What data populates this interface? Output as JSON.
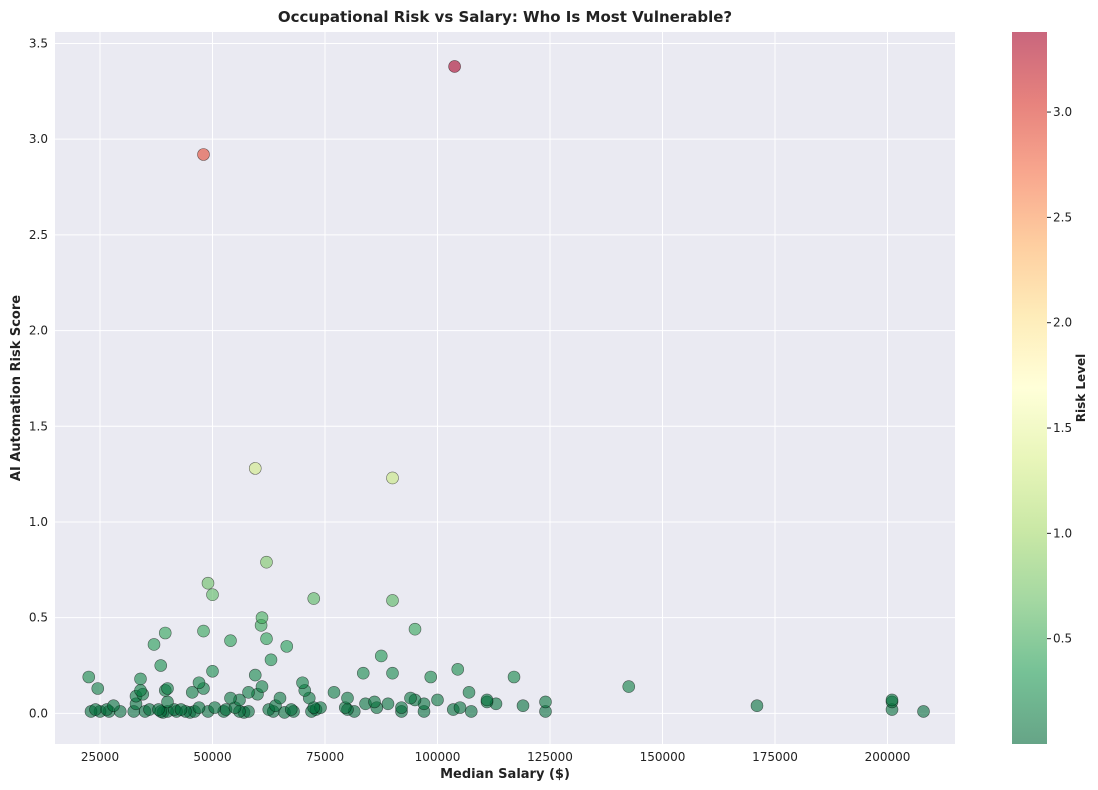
{
  "chart_data": {
    "type": "scatter",
    "title": "Occupational Risk vs Salary: Who Is Most Vulnerable?",
    "xlabel": "Median Salary ($)",
    "ylabel": "AI Automation Risk Score",
    "xlim": [
      15000,
      215000
    ],
    "ylim": [
      -0.16,
      3.56
    ],
    "x_ticks": [
      25000,
      50000,
      75000,
      100000,
      125000,
      150000,
      175000,
      200000
    ],
    "x_tick_labels": [
      "25000",
      "50000",
      "75000",
      "100000",
      "125000",
      "150000",
      "175000",
      "200000"
    ],
    "y_ticks": [
      0.0,
      0.5,
      1.0,
      1.5,
      2.0,
      2.5,
      3.0,
      3.5
    ],
    "y_tick_labels": [
      "0.0",
      "0.5",
      "1.0",
      "1.5",
      "2.0",
      "2.5",
      "3.0",
      "3.5"
    ],
    "grid": true,
    "colorbar": {
      "label": "Risk Level",
      "colormap": "RdYlGn_r",
      "range": [
        0.0,
        3.38
      ],
      "ticks": [
        0.5,
        1.0,
        1.5,
        2.0,
        2.5,
        3.0
      ],
      "tick_labels": [
        "0.5",
        "1.0",
        "1.5",
        "2.0",
        "2.5",
        "3.0"
      ]
    },
    "points": [
      {
        "x": 103800,
        "y": 3.38
      },
      {
        "x": 48000,
        "y": 2.92
      },
      {
        "x": 59500,
        "y": 1.28
      },
      {
        "x": 90000,
        "y": 1.23
      },
      {
        "x": 62000,
        "y": 0.79
      },
      {
        "x": 49000,
        "y": 0.68
      },
      {
        "x": 50000,
        "y": 0.62
      },
      {
        "x": 72500,
        "y": 0.6
      },
      {
        "x": 90000,
        "y": 0.59
      },
      {
        "x": 61000,
        "y": 0.5
      },
      {
        "x": 60800,
        "y": 0.46
      },
      {
        "x": 95000,
        "y": 0.44
      },
      {
        "x": 48000,
        "y": 0.43
      },
      {
        "x": 39500,
        "y": 0.42
      },
      {
        "x": 54000,
        "y": 0.38
      },
      {
        "x": 62000,
        "y": 0.39
      },
      {
        "x": 37000,
        "y": 0.36
      },
      {
        "x": 66500,
        "y": 0.35
      },
      {
        "x": 87500,
        "y": 0.3
      },
      {
        "x": 63000,
        "y": 0.28
      },
      {
        "x": 38500,
        "y": 0.25
      },
      {
        "x": 104500,
        "y": 0.23
      },
      {
        "x": 50000,
        "y": 0.22
      },
      {
        "x": 83500,
        "y": 0.21
      },
      {
        "x": 90000,
        "y": 0.21
      },
      {
        "x": 59500,
        "y": 0.2
      },
      {
        "x": 22500,
        "y": 0.19
      },
      {
        "x": 117000,
        "y": 0.19
      },
      {
        "x": 98500,
        "y": 0.19
      },
      {
        "x": 34000,
        "y": 0.18
      },
      {
        "x": 47000,
        "y": 0.16
      },
      {
        "x": 70000,
        "y": 0.16
      },
      {
        "x": 61000,
        "y": 0.14
      },
      {
        "x": 142500,
        "y": 0.14
      },
      {
        "x": 24500,
        "y": 0.13
      },
      {
        "x": 40000,
        "y": 0.13
      },
      {
        "x": 48000,
        "y": 0.13
      },
      {
        "x": 34000,
        "y": 0.12
      },
      {
        "x": 39500,
        "y": 0.12
      },
      {
        "x": 70500,
        "y": 0.12
      },
      {
        "x": 45500,
        "y": 0.11
      },
      {
        "x": 58000,
        "y": 0.11
      },
      {
        "x": 77000,
        "y": 0.11
      },
      {
        "x": 107000,
        "y": 0.11
      },
      {
        "x": 60000,
        "y": 0.1
      },
      {
        "x": 34500,
        "y": 0.1
      },
      {
        "x": 33000,
        "y": 0.09
      },
      {
        "x": 71500,
        "y": 0.08
      },
      {
        "x": 54000,
        "y": 0.08
      },
      {
        "x": 65000,
        "y": 0.08
      },
      {
        "x": 80000,
        "y": 0.08
      },
      {
        "x": 94000,
        "y": 0.08
      },
      {
        "x": 56000,
        "y": 0.07
      },
      {
        "x": 100000,
        "y": 0.07
      },
      {
        "x": 95000,
        "y": 0.07
      },
      {
        "x": 111000,
        "y": 0.07
      },
      {
        "x": 111000,
        "y": 0.06
      },
      {
        "x": 201000,
        "y": 0.07
      },
      {
        "x": 201000,
        "y": 0.06
      },
      {
        "x": 124000,
        "y": 0.06
      },
      {
        "x": 86000,
        "y": 0.06
      },
      {
        "x": 40000,
        "y": 0.06
      },
      {
        "x": 89000,
        "y": 0.05
      },
      {
        "x": 113000,
        "y": 0.05
      },
      {
        "x": 97000,
        "y": 0.05
      },
      {
        "x": 84000,
        "y": 0.05
      },
      {
        "x": 33000,
        "y": 0.05
      },
      {
        "x": 64000,
        "y": 0.04
      },
      {
        "x": 171000,
        "y": 0.04
      },
      {
        "x": 119000,
        "y": 0.04
      },
      {
        "x": 28000,
        "y": 0.04
      },
      {
        "x": 86500,
        "y": 0.03
      },
      {
        "x": 74000,
        "y": 0.03
      },
      {
        "x": 79500,
        "y": 0.03
      },
      {
        "x": 72500,
        "y": 0.03
      },
      {
        "x": 105000,
        "y": 0.03
      },
      {
        "x": 55000,
        "y": 0.03
      },
      {
        "x": 92000,
        "y": 0.03
      },
      {
        "x": 50500,
        "y": 0.03
      },
      {
        "x": 47000,
        "y": 0.03
      },
      {
        "x": 80000,
        "y": 0.02
      },
      {
        "x": 41500,
        "y": 0.02
      },
      {
        "x": 73000,
        "y": 0.02
      },
      {
        "x": 67500,
        "y": 0.02
      },
      {
        "x": 36000,
        "y": 0.02
      },
      {
        "x": 24000,
        "y": 0.02
      },
      {
        "x": 103500,
        "y": 0.02
      },
      {
        "x": 62500,
        "y": 0.02
      },
      {
        "x": 43000,
        "y": 0.02
      },
      {
        "x": 53000,
        "y": 0.02
      },
      {
        "x": 26500,
        "y": 0.02
      },
      {
        "x": 38000,
        "y": 0.02
      },
      {
        "x": 107500,
        "y": 0.01
      },
      {
        "x": 124000,
        "y": 0.01
      },
      {
        "x": 201000,
        "y": 0.02
      },
      {
        "x": 208000,
        "y": 0.01
      },
      {
        "x": 81500,
        "y": 0.01
      },
      {
        "x": 92000,
        "y": 0.01
      },
      {
        "x": 97000,
        "y": 0.01
      },
      {
        "x": 72000,
        "y": 0.01
      },
      {
        "x": 68000,
        "y": 0.01
      },
      {
        "x": 63500,
        "y": 0.01
      },
      {
        "x": 58000,
        "y": 0.01
      },
      {
        "x": 56000,
        "y": 0.01
      },
      {
        "x": 52500,
        "y": 0.01
      },
      {
        "x": 49000,
        "y": 0.01
      },
      {
        "x": 46000,
        "y": 0.01
      },
      {
        "x": 44000,
        "y": 0.01
      },
      {
        "x": 42000,
        "y": 0.01
      },
      {
        "x": 40000,
        "y": 0.01
      },
      {
        "x": 38500,
        "y": 0.01
      },
      {
        "x": 35000,
        "y": 0.01
      },
      {
        "x": 32500,
        "y": 0.01
      },
      {
        "x": 29500,
        "y": 0.01
      },
      {
        "x": 27000,
        "y": 0.01
      },
      {
        "x": 25000,
        "y": 0.01
      },
      {
        "x": 23000,
        "y": 0.01
      },
      {
        "x": 45000,
        "y": 0.005
      },
      {
        "x": 39000,
        "y": 0.005
      },
      {
        "x": 57000,
        "y": 0.005
      },
      {
        "x": 66000,
        "y": 0.005
      }
    ]
  }
}
